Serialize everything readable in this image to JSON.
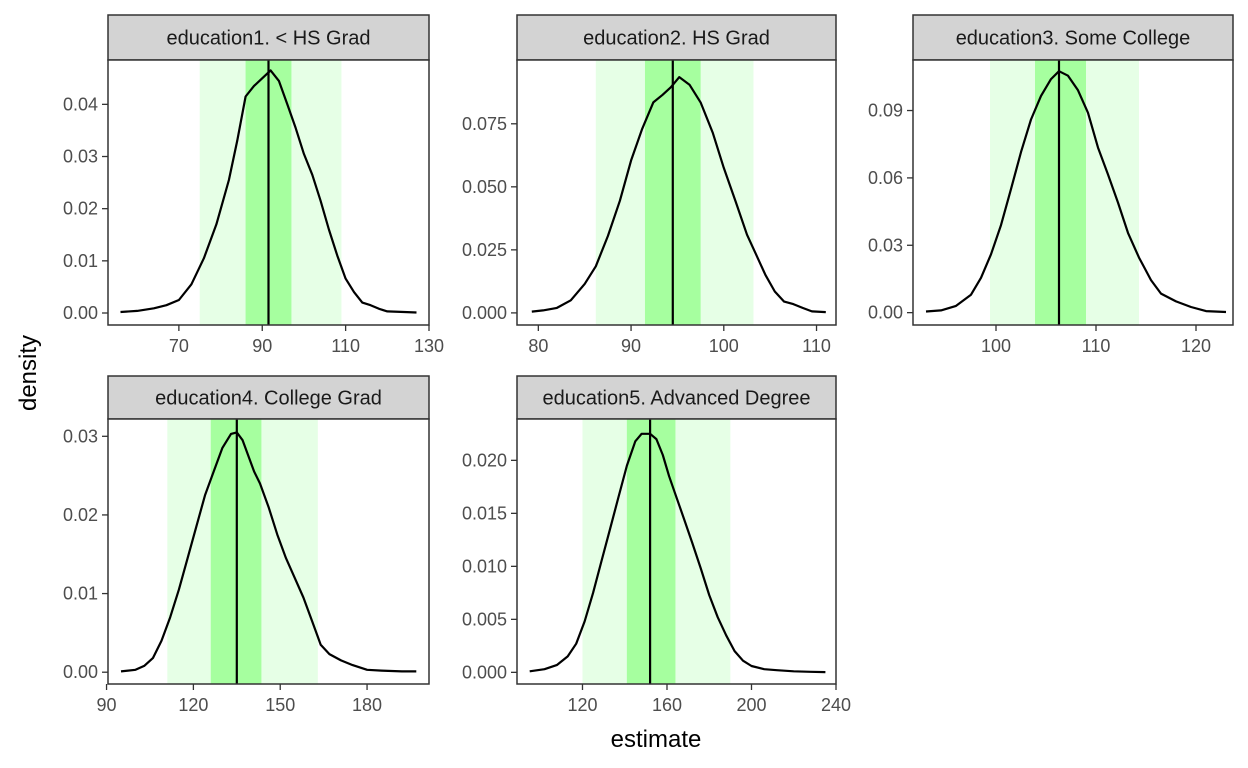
{
  "chart_data": {
    "type": "area",
    "xlabel": "estimate",
    "ylabel": "density",
    "legend": "none",
    "grid": false,
    "colors": {
      "outer_band": "#e6ffe6",
      "inner_band": "#a6ff9f",
      "curve": "#000000",
      "median_line": "#000000",
      "strip_fill": "#d3d3d3"
    },
    "panels": [
      {
        "strip": "education1. < HS Grad",
        "xlim": [
          53,
          130
        ],
        "ylim": [
          -0.0023,
          0.0485
        ],
        "x_ticks": [
          70,
          90,
          110,
          130
        ],
        "y_ticks": [
          0.0,
          0.01,
          0.02,
          0.03,
          0.04
        ],
        "y_tick_labels": [
          "0.00",
          "0.01",
          "0.02",
          "0.03",
          "0.04"
        ],
        "outer_interval": [
          75,
          109
        ],
        "inner_interval": [
          86,
          97
        ],
        "median": 91.5,
        "density_x": [
          56,
          60,
          64,
          67,
          70,
          73,
          76,
          79,
          82,
          84,
          86,
          88,
          90,
          92,
          94,
          96,
          98,
          100,
          102,
          104,
          106,
          108,
          110,
          112,
          114,
          116,
          118,
          120,
          124,
          127
        ],
        "density_y": [
          0.0002,
          0.0004,
          0.0009,
          0.0015,
          0.0025,
          0.0055,
          0.0105,
          0.017,
          0.0255,
          0.033,
          0.0415,
          0.0435,
          0.045,
          0.0465,
          0.0445,
          0.04,
          0.0355,
          0.0305,
          0.0265,
          0.0215,
          0.016,
          0.011,
          0.0066,
          0.004,
          0.002,
          0.0015,
          0.0008,
          0.0003,
          0.0002,
          0.0001
        ]
      },
      {
        "strip": "education2. HS Grad",
        "xlim": [
          77.7,
          112.1
        ],
        "ylim": [
          -0.0048,
          0.1003
        ],
        "x_ticks": [
          80,
          90,
          100,
          110
        ],
        "y_ticks": [
          0.0,
          0.025,
          0.05,
          0.075
        ],
        "y_tick_labels": [
          "0.000",
          "0.025",
          "0.050",
          "0.075"
        ],
        "outer_interval": [
          86.2,
          103.2
        ],
        "inner_interval": [
          91.5,
          97.5
        ],
        "median": 94.5,
        "density_x": [
          79.3,
          80.5,
          82,
          83.5,
          85,
          86.2,
          87.5,
          88.8,
          90,
          91.2,
          92.4,
          93.4,
          94.3,
          95.2,
          96.3,
          97.5,
          98.8,
          100,
          101.3,
          102.5,
          103.5,
          104.5,
          105.5,
          106.5,
          107.5,
          108.5,
          109.5,
          111
        ],
        "density_y": [
          0.0005,
          0.001,
          0.002,
          0.005,
          0.0115,
          0.0185,
          0.0305,
          0.0445,
          0.0605,
          0.073,
          0.0835,
          0.0865,
          0.0895,
          0.0935,
          0.0905,
          0.0835,
          0.0715,
          0.0575,
          0.044,
          0.031,
          0.023,
          0.015,
          0.0085,
          0.0045,
          0.0035,
          0.002,
          0.0006,
          0.0003
        ]
      },
      {
        "strip": "education3. Some College",
        "xlim": [
          91.7,
          123.7
        ],
        "ylim": [
          -0.0055,
          0.1125
        ],
        "x_ticks": [
          100,
          110,
          120
        ],
        "y_ticks": [
          0.0,
          0.03,
          0.06,
          0.09
        ],
        "y_tick_labels": [
          "0.00",
          "0.03",
          "0.06",
          "0.09"
        ],
        "outer_interval": [
          99.4,
          114.3
        ],
        "inner_interval": [
          103.9,
          109
        ],
        "median": 106.3,
        "density_x": [
          93,
          94.5,
          96,
          97.5,
          98.5,
          99.5,
          100.5,
          101.5,
          102.5,
          103.5,
          104.5,
          105.5,
          106.3,
          107.2,
          108.2,
          109.2,
          110.2,
          111.2,
          112.2,
          113.2,
          114.3,
          115.5,
          116.5,
          118,
          119.5,
          121,
          123
        ],
        "density_y": [
          0.0005,
          0.001,
          0.003,
          0.008,
          0.0155,
          0.026,
          0.039,
          0.055,
          0.0715,
          0.086,
          0.0965,
          0.104,
          0.1075,
          0.1055,
          0.099,
          0.089,
          0.0735,
          0.0615,
          0.049,
          0.0355,
          0.0245,
          0.0145,
          0.0085,
          0.005,
          0.0025,
          0.0007,
          0.0003
        ]
      },
      {
        "strip": "education4. College Grad",
        "xlim": [
          90.5,
          201.4
        ],
        "ylim": [
          -0.0015,
          0.0322
        ],
        "x_ticks": [
          90,
          120,
          150,
          180
        ],
        "y_ticks": [
          0.0,
          0.01,
          0.02,
          0.03
        ],
        "y_tick_labels": [
          "0.00",
          "0.01",
          "0.02",
          "0.03"
        ],
        "outer_interval": [
          111,
          163
        ],
        "inner_interval": [
          126,
          143.5
        ],
        "median": 135,
        "density_x": [
          95,
          100,
          103,
          106,
          109,
          112,
          115,
          118,
          121,
          124,
          127,
          130,
          133,
          135,
          137,
          139,
          141,
          143,
          146,
          149,
          152,
          155,
          158,
          161,
          164,
          167,
          171,
          175,
          180,
          185,
          192,
          197
        ],
        "density_y": [
          0.0001,
          0.0003,
          0.0008,
          0.0018,
          0.004,
          0.007,
          0.0105,
          0.0145,
          0.0185,
          0.0225,
          0.0255,
          0.0285,
          0.0303,
          0.0305,
          0.0295,
          0.0275,
          0.0255,
          0.024,
          0.021,
          0.0175,
          0.0145,
          0.012,
          0.0095,
          0.0065,
          0.0035,
          0.0023,
          0.0015,
          0.0009,
          0.0003,
          0.0002,
          0.0001,
          0.0001
        ]
      },
      {
        "strip": "education5. Advanced Degree",
        "xlim": [
          89,
          240
        ],
        "ylim": [
          -0.0011,
          0.0239
        ],
        "x_ticks": [
          120,
          160,
          200,
          240
        ],
        "y_ticks": [
          0.0,
          0.005,
          0.01,
          0.015,
          0.02
        ],
        "y_tick_labels": [
          "0.000",
          "0.005",
          "0.010",
          "0.015",
          "0.020"
        ],
        "outer_interval": [
          120,
          190
        ],
        "inner_interval": [
          141,
          164
        ],
        "median": 152,
        "density_x": [
          95,
          102,
          108,
          113,
          117,
          121,
          125,
          129,
          133,
          137,
          141,
          145,
          148,
          152,
          155,
          158,
          161,
          164,
          168,
          172,
          176,
          180,
          184,
          188,
          192,
          196,
          200,
          206,
          212,
          220,
          228,
          235
        ],
        "density_y": [
          0.0001,
          0.0003,
          0.0007,
          0.0015,
          0.0027,
          0.0048,
          0.0075,
          0.0105,
          0.0135,
          0.0165,
          0.0195,
          0.0218,
          0.0225,
          0.0225,
          0.022,
          0.0205,
          0.0185,
          0.0168,
          0.0145,
          0.0122,
          0.0098,
          0.0073,
          0.0052,
          0.0035,
          0.002,
          0.0011,
          0.0006,
          0.0003,
          0.0002,
          0.0001,
          5e-05,
          2e-05
        ]
      }
    ]
  }
}
